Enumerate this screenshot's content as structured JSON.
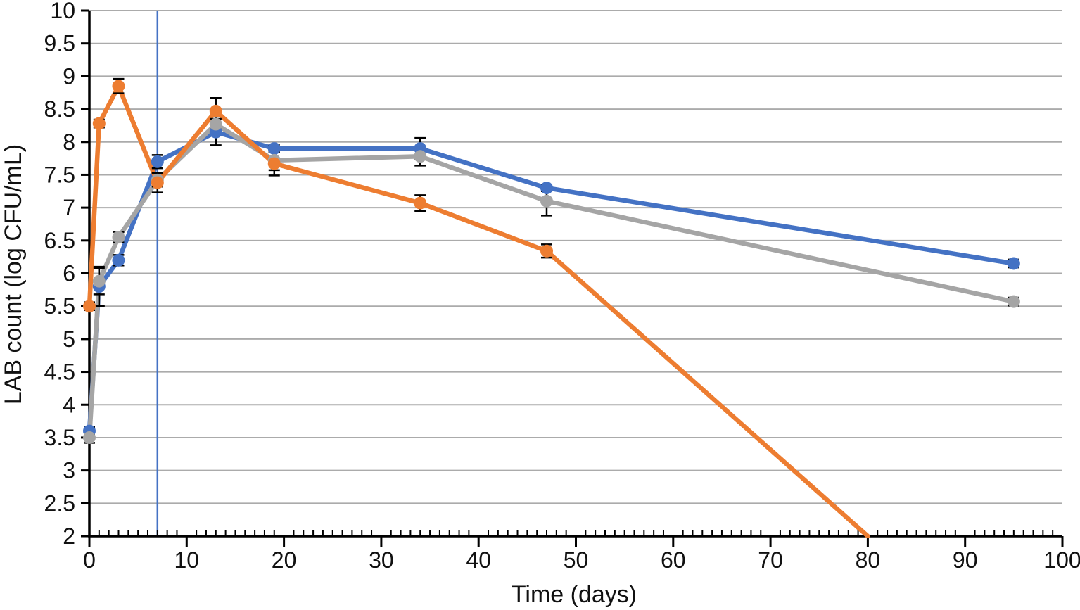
{
  "chart_data": {
    "type": "line",
    "title": "",
    "xlabel": "Time (days)",
    "ylabel": "LAB count (log CFU/mL)",
    "xlim": [
      0,
      100
    ],
    "ylim": [
      2,
      10
    ],
    "x_major_tick_step": 10,
    "x_minor_tick_step": 1,
    "y_tick_step": 0.5,
    "x_tick_labels": [
      "0",
      "10",
      "20",
      "30",
      "40",
      "50",
      "60",
      "70",
      "80",
      "90",
      "100"
    ],
    "y_tick_labels": [
      "2",
      "2.5",
      "3",
      "3.5",
      "4",
      "4.5",
      "5",
      "5.5",
      "6",
      "6.5",
      "7",
      "7.5",
      "8",
      "8.5",
      "9",
      "9.5",
      "10"
    ],
    "grid": "horizontal-only",
    "gridline_color": "#ABABAB",
    "axis_color": "#000000",
    "error_bar_color": "#000000",
    "legend_position": "none",
    "annotations": [
      {
        "type": "vertical-line",
        "x": 7,
        "color": "#4472C4"
      }
    ],
    "x": [
      0,
      1,
      3,
      7,
      13,
      19,
      34,
      47,
      95
    ],
    "series": [
      {
        "name": "blue",
        "color": "#4472C4",
        "values": [
          3.6,
          5.8,
          6.2,
          7.7,
          8.15,
          7.9,
          7.9,
          7.3,
          6.15
        ],
        "errors": [
          0.06,
          0.3,
          0.08,
          0.1,
          0.2,
          0.05,
          0.16,
          0.05,
          0.06
        ]
      },
      {
        "name": "gray",
        "color": "#A5A5A5",
        "values": [
          3.5,
          5.88,
          6.55,
          7.42,
          8.27,
          7.72,
          7.78,
          7.1,
          5.57
        ],
        "errors": [
          0.08,
          0.2,
          0.08,
          0.1,
          0.08,
          0.15,
          0.14,
          0.22,
          0.06
        ]
      },
      {
        "name": "orange",
        "color": "#ED7D31",
        "values": [
          5.5,
          8.28,
          8.85,
          7.38,
          8.47,
          7.67,
          7.07,
          6.34,
          null
        ],
        "errors": [
          0.06,
          0.06,
          0.11,
          0.15,
          0.2,
          0.18,
          0.12,
          0.1,
          null
        ],
        "line_end": {
          "x": 80,
          "y": 2
        }
      }
    ]
  }
}
